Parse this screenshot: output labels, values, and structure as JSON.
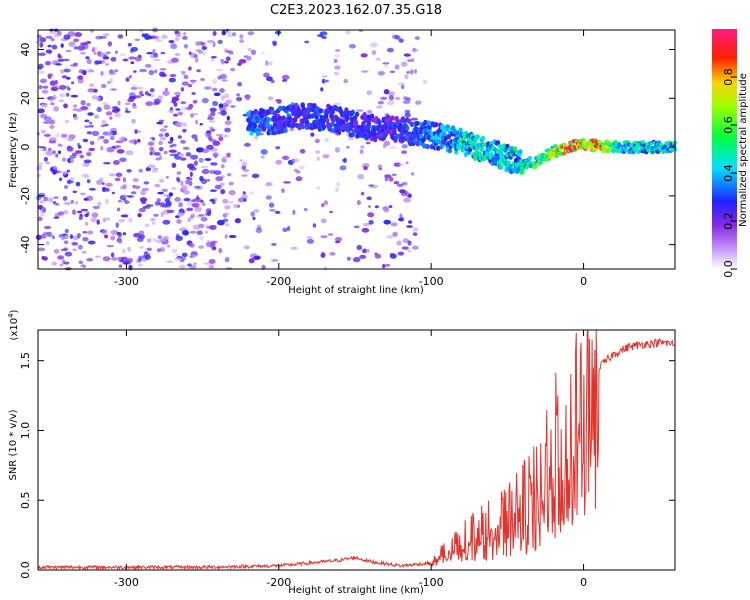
{
  "title": "C2E3.2023.162.07.35.G18",
  "colorbar": {
    "label": "Normalized spectral amplitude",
    "ticks": [
      "0.0",
      "0.2",
      "0.4",
      "0.6",
      "0.8"
    ],
    "tick_values": [
      0.0,
      0.2,
      0.4,
      0.6,
      0.8
    ],
    "range": [
      0,
      1
    ],
    "colormap": [
      "#ffffff",
      "#9030ff",
      "#2020ff",
      "#00ffff",
      "#00ff00",
      "#ffff00",
      "#ff0000",
      "#ff1080"
    ]
  },
  "chart_data": [
    {
      "type": "heatmap",
      "xlabel": "Height of straight line (km)",
      "ylabel": "Frequency (Hz)",
      "xlim": [
        -358,
        60
      ],
      "ylim": [
        -50,
        48
      ],
      "xticks": [
        -300,
        -200,
        -100,
        0
      ],
      "xtick_labels": [
        "-300",
        "-200",
        "-100",
        "0"
      ],
      "yticks": [
        -40,
        -20,
        0,
        20,
        40
      ],
      "ytick_labels": [
        "-40",
        "-20",
        "0",
        "20",
        "40"
      ],
      "ridge": {
        "x": [
          -220,
          -200,
          -180,
          -160,
          -140,
          -120,
          -100,
          -80,
          -60,
          -40,
          -30,
          -20,
          -10,
          0,
          10,
          20,
          30,
          40,
          50,
          60
        ],
        "freq": [
          10,
          11,
          13,
          11,
          8,
          7,
          5,
          2,
          -2,
          -7,
          -6,
          -2,
          0,
          1,
          0.5,
          0.5,
          0,
          0,
          0,
          0
        ],
        "amplitude": [
          0.35,
          0.3,
          0.3,
          0.28,
          0.28,
          0.28,
          0.35,
          0.45,
          0.45,
          0.45,
          0.55,
          0.65,
          0.9,
          0.85,
          0.9,
          0.5,
          0.45,
          0.45,
          0.45,
          0.45
        ]
      },
      "background_noise_amplitude": 0.25
    },
    {
      "type": "line",
      "xlabel": "Height of straight line (km)",
      "ylabel": "SNR (10 * v/v)",
      "y_multiplier": "(x10",
      "y_multiplier_exp": "4",
      "y_multiplier_close": ")",
      "xlim": [
        -358,
        60
      ],
      "ylim": [
        0,
        1.72
      ],
      "xticks": [
        -300,
        -200,
        -100,
        0
      ],
      "xtick_labels": [
        "-300",
        "-200",
        "-100",
        "0"
      ],
      "yticks": [
        0.0,
        0.5,
        1.0,
        1.5
      ],
      "ytick_labels": [
        "0.0",
        "0.5",
        "1.0",
        "1.5"
      ],
      "series": [
        {
          "color": "#e8302a",
          "x": [
            -358,
            -300,
            -250,
            -200,
            -180,
            -160,
            -150,
            -140,
            -120,
            -100,
            -90,
            -80,
            -70,
            -60,
            -50,
            -40,
            -30,
            -25,
            -20,
            -15,
            -10,
            -5,
            0,
            5,
            8,
            10,
            15,
            20,
            30,
            40,
            50,
            60
          ],
          "y": [
            0.02,
            0.02,
            0.02,
            0.03,
            0.05,
            0.07,
            0.09,
            0.06,
            0.03,
            0.05,
            0.15,
            0.25,
            0.3,
            0.35,
            0.4,
            0.5,
            0.6,
            0.8,
            0.9,
            0.95,
            1.0,
            1.1,
            1.2,
            1.3,
            1.4,
            1.45,
            1.5,
            1.55,
            1.6,
            1.62,
            1.63,
            1.62
          ]
        }
      ]
    }
  ]
}
